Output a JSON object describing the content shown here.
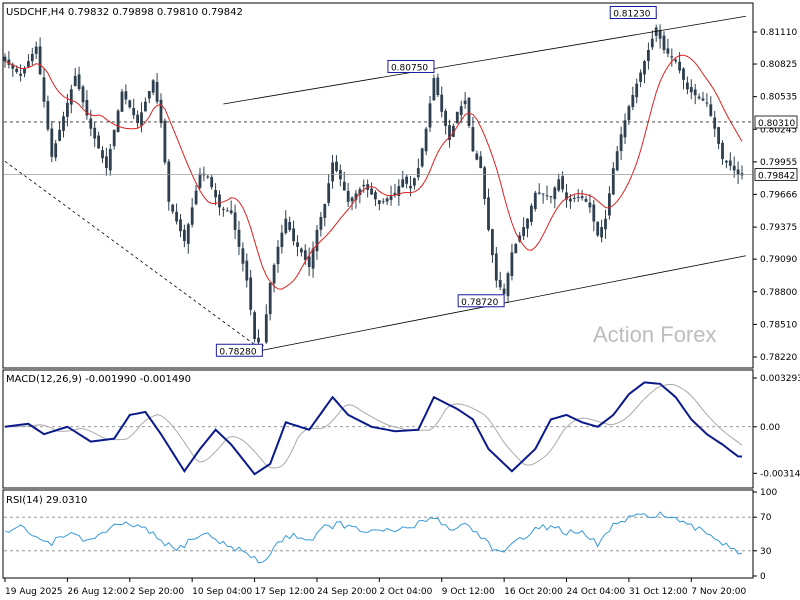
{
  "chart_data": [
    {
      "type": "candlestick",
      "panel": "price",
      "title": "USDCHF,H4  0.79832 0.79898 0.79810 0.79842",
      "watermark": "Action Forex",
      "ylim": [
        0.7814,
        0.8135
      ],
      "yticks": [
        "0.81110",
        "0.80825",
        "0.80535",
        "0.80245",
        "0.79955",
        "0.79666",
        "0.79375",
        "0.79090",
        "0.78800",
        "0.78510",
        "0.78220"
      ],
      "ytick_values": [
        0.8111,
        0.80825,
        0.80535,
        0.80245,
        0.79955,
        0.79666,
        0.79375,
        0.7909,
        0.788,
        0.7851,
        0.7822
      ],
      "current_price": {
        "label": "0.79842",
        "value": 0.79842
      },
      "dashed_level": {
        "label": "0.80310",
        "value": 0.8031
      },
      "annotations": [
        {
          "label": "0.78280",
          "value": 0.7828,
          "bar": 66
        },
        {
          "label": "0.80750",
          "value": 0.8075,
          "bar": 110
        },
        {
          "label": "0.78720",
          "value": 0.7872,
          "bar": 128
        },
        {
          "label": "0.81230",
          "value": 0.8123,
          "bar": 167
        }
      ],
      "channel_upper": [
        {
          "bar": 56,
          "value": 0.8047
        },
        {
          "bar": 190,
          "value": 0.8125
        }
      ],
      "channel_lower": [
        {
          "bar": 66,
          "value": 0.7828
        },
        {
          "bar": 190,
          "value": 0.7912
        }
      ],
      "trend_line": [
        {
          "bar": 0,
          "value": 0.7996
        },
        {
          "bar": 66,
          "value": 0.7828
        }
      ],
      "ma_color": "#dd2222",
      "candle_color": "#2e4050",
      "anchors": [
        [
          0,
          0.8085
        ],
        [
          4,
          0.8072
        ],
        [
          8,
          0.8098
        ],
        [
          12,
          0.8
        ],
        [
          18,
          0.8072
        ],
        [
          22,
          0.8025
        ],
        [
          26,
          0.799
        ],
        [
          30,
          0.8058
        ],
        [
          34,
          0.803
        ],
        [
          38,
          0.8068
        ],
        [
          40,
          0.803
        ],
        [
          42,
          0.796
        ],
        [
          46,
          0.7925
        ],
        [
          50,
          0.7985
        ],
        [
          52,
          0.7982
        ],
        [
          55,
          0.7955
        ],
        [
          58,
          0.795
        ],
        [
          62,
          0.789
        ],
        [
          64,
          0.7838
        ],
        [
          66,
          0.7832
        ],
        [
          68,
          0.7888
        ],
        [
          70,
          0.792
        ],
        [
          72,
          0.7945
        ],
        [
          74,
          0.7925
        ],
        [
          76,
          0.7915
        ],
        [
          78,
          0.7902
        ],
        [
          80,
          0.7935
        ],
        [
          82,
          0.7958
        ],
        [
          84,
          0.7995
        ],
        [
          86,
          0.798
        ],
        [
          88,
          0.796
        ],
        [
          92,
          0.7975
        ],
        [
          96,
          0.7958
        ],
        [
          100,
          0.7968
        ],
        [
          102,
          0.798
        ],
        [
          104,
          0.7972
        ],
        [
          106,
          0.799
        ],
        [
          108,
          0.8025
        ],
        [
          110,
          0.807
        ],
        [
          112,
          0.804
        ],
        [
          114,
          0.8015
        ],
        [
          116,
          0.804
        ],
        [
          118,
          0.805
        ],
        [
          120,
          0.8005
        ],
        [
          122,
          0.799
        ],
        [
          124,
          0.7935
        ],
        [
          126,
          0.789
        ],
        [
          128,
          0.7878
        ],
        [
          130,
          0.7915
        ],
        [
          134,
          0.7945
        ],
        [
          136,
          0.7968
        ],
        [
          140,
          0.7965
        ],
        [
          142,
          0.798
        ],
        [
          144,
          0.7962
        ],
        [
          148,
          0.7965
        ],
        [
          150,
          0.7955
        ],
        [
          152,
          0.793
        ],
        [
          154,
          0.7945
        ],
        [
          156,
          0.799
        ],
        [
          158,
          0.802
        ],
        [
          160,
          0.8045
        ],
        [
          164,
          0.8085
        ],
        [
          167,
          0.8115
        ],
        [
          169,
          0.8095
        ],
        [
          172,
          0.8085
        ],
        [
          175,
          0.806
        ],
        [
          178,
          0.8052
        ],
        [
          180,
          0.8048
        ],
        [
          182,
          0.8025
        ],
        [
          184,
          0.7998
        ],
        [
          186,
          0.7992
        ],
        [
          188,
          0.7984
        ]
      ]
    },
    {
      "type": "line",
      "panel": "macd",
      "title": "MACD(12,26,9) -0.001990 -0.001490",
      "ylim": [
        -0.004,
        0.0037
      ],
      "yticks": [
        "0.003293",
        "0.00",
        "-0.003142"
      ],
      "ytick_values": [
        0.003293,
        0.0,
        -0.003142
      ],
      "current_label": "0.00",
      "macd_color": "#0a1a8a",
      "signal_color": "#aaaaaa",
      "series": [
        {
          "name": "MACD",
          "anchors": [
            [
              0,
              0.0
            ],
            [
              6,
              0.0002
            ],
            [
              10,
              -0.0005
            ],
            [
              16,
              0.0
            ],
            [
              22,
              -0.001
            ],
            [
              28,
              -0.0008
            ],
            [
              32,
              0.0008
            ],
            [
              36,
              0.001
            ],
            [
              40,
              -0.0005
            ],
            [
              46,
              -0.003
            ],
            [
              50,
              -0.0015
            ],
            [
              54,
              -0.0002
            ],
            [
              58,
              -0.0012
            ],
            [
              64,
              -0.0032
            ],
            [
              68,
              -0.0025
            ],
            [
              72,
              0.0003
            ],
            [
              78,
              -0.0002
            ],
            [
              84,
              0.002
            ],
            [
              88,
              0.0008
            ],
            [
              94,
              0.0
            ],
            [
              100,
              -0.0003
            ],
            [
              106,
              -0.0002
            ],
            [
              110,
              0.002
            ],
            [
              116,
              0.0012
            ],
            [
              120,
              0.0005
            ],
            [
              124,
              -0.0015
            ],
            [
              130,
              -0.003
            ],
            [
              136,
              -0.0015
            ],
            [
              140,
              0.0005
            ],
            [
              144,
              0.0008
            ],
            [
              148,
              0.0003
            ],
            [
              152,
              0.0
            ],
            [
              156,
              0.0008
            ],
            [
              160,
              0.0022
            ],
            [
              164,
              0.003
            ],
            [
              168,
              0.0029
            ],
            [
              172,
              0.002
            ],
            [
              176,
              0.0005
            ],
            [
              180,
              -0.0005
            ],
            [
              184,
              -0.0012
            ],
            [
              188,
              -0.002
            ]
          ]
        },
        {
          "name": "Signal",
          "lag": 3,
          "smooth": 0.35
        }
      ]
    },
    {
      "type": "line",
      "panel": "rsi",
      "title": "RSI(14) 29.0310",
      "ylim": [
        0,
        100
      ],
      "yticks": [
        "100",
        "70",
        "30",
        "0"
      ],
      "ytick_values": [
        100,
        70,
        30,
        0
      ],
      "levels": [
        70,
        30
      ],
      "rsi_color": "#3a9ad9",
      "series": [
        {
          "name": "RSI",
          "anchors": [
            [
              0,
              52
            ],
            [
              4,
              58
            ],
            [
              8,
              45
            ],
            [
              12,
              40
            ],
            [
              16,
              52
            ],
            [
              20,
              42
            ],
            [
              24,
              48
            ],
            [
              28,
              58
            ],
            [
              32,
              62
            ],
            [
              36,
              55
            ],
            [
              40,
              42
            ],
            [
              44,
              30
            ],
            [
              48,
              45
            ],
            [
              52,
              50
            ],
            [
              56,
              38
            ],
            [
              60,
              32
            ],
            [
              64,
              20
            ],
            [
              66,
              15
            ],
            [
              70,
              40
            ],
            [
              74,
              50
            ],
            [
              78,
              42
            ],
            [
              82,
              58
            ],
            [
              86,
              62
            ],
            [
              90,
              55
            ],
            [
              96,
              52
            ],
            [
              100,
              54
            ],
            [
              104,
              58
            ],
            [
              108,
              66
            ],
            [
              110,
              72
            ],
            [
              114,
              55
            ],
            [
              118,
              62
            ],
            [
              122,
              48
            ],
            [
              126,
              30
            ],
            [
              128,
              26
            ],
            [
              132,
              45
            ],
            [
              136,
              55
            ],
            [
              140,
              60
            ],
            [
              144,
              52
            ],
            [
              148,
              50
            ],
            [
              152,
              38
            ],
            [
              156,
              60
            ],
            [
              160,
              68
            ],
            [
              164,
              72
            ],
            [
              168,
              74
            ],
            [
              172,
              66
            ],
            [
              176,
              58
            ],
            [
              180,
              52
            ],
            [
              184,
              40
            ],
            [
              188,
              29
            ]
          ]
        }
      ]
    }
  ],
  "x_axis_labels": [
    "19 Aug 2025",
    "26 Aug 12:00",
    "2 Sep 20:00",
    "10 Sep 04:00",
    "17 Sep 12:00",
    "24 Sep 20:00",
    "2 Oct 04:00",
    "9 Oct 12:00",
    "16 Oct 20:00",
    "24 Oct 04:00",
    "31 Oct 12:00",
    "7 Nov 20:00"
  ],
  "x_axis_bars": [
    0,
    16,
    32,
    48,
    64,
    80,
    96,
    112,
    128,
    144,
    160,
    176
  ]
}
